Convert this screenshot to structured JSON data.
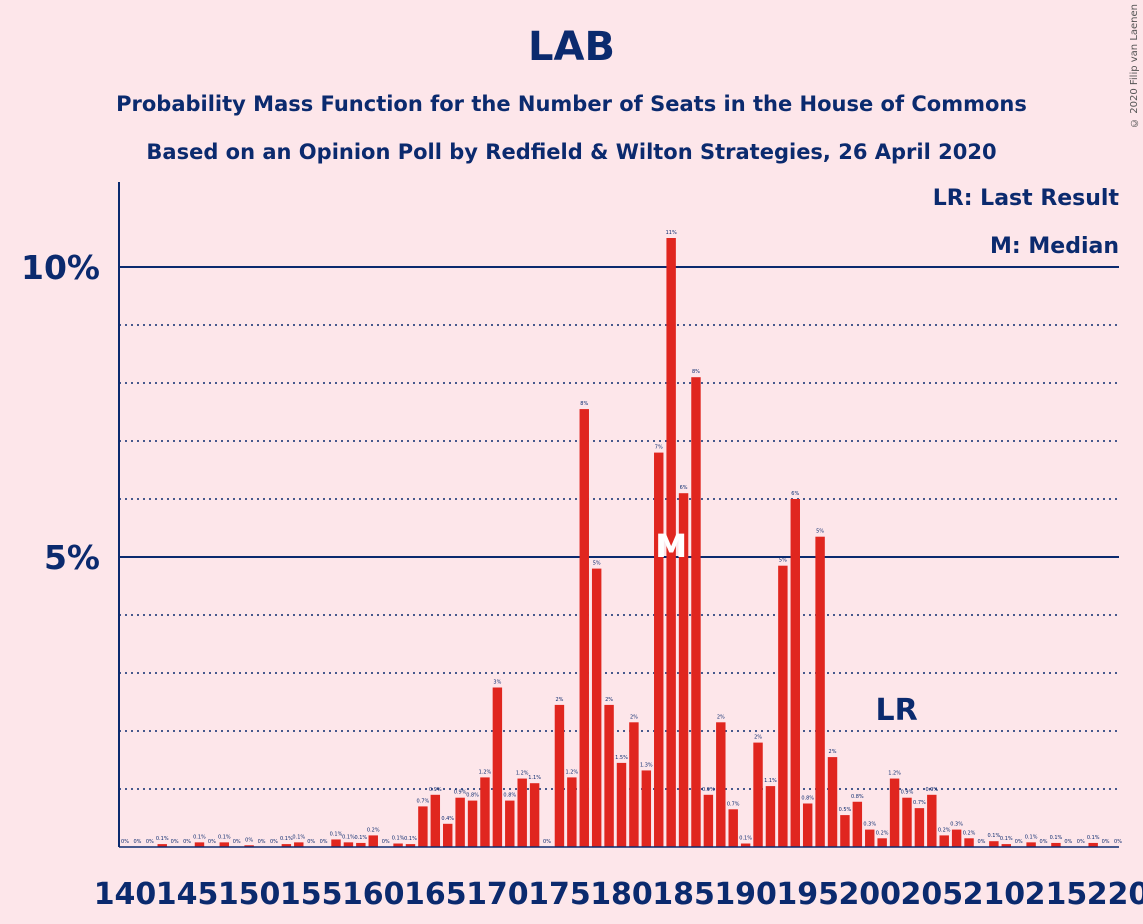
{
  "title": "LAB",
  "subtitle1": "Probability Mass Function for the Number of Seats in the House of Commons",
  "subtitle2": "Based on an Opinion Poll by Redfield & Wilton Strategies, 26 April 2020",
  "copyright": "© 2020 Filip van Laenen",
  "legend": {
    "last_result": "LR: Last Result",
    "median": "M: Median"
  },
  "colors": {
    "bar": "#e0261f",
    "axis": "#0b2a6e",
    "background": "#fde6ea"
  },
  "chart_data": {
    "type": "bar",
    "x": [
      140,
      141,
      142,
      143,
      144,
      145,
      146,
      147,
      148,
      149,
      150,
      151,
      152,
      153,
      154,
      155,
      156,
      157,
      158,
      159,
      160,
      161,
      162,
      163,
      164,
      165,
      166,
      167,
      168,
      169,
      170,
      171,
      172,
      173,
      174,
      175,
      176,
      177,
      178,
      179,
      180,
      181,
      182,
      183,
      184,
      185,
      186,
      187,
      188,
      189,
      190,
      191,
      192,
      193,
      194,
      195,
      196,
      197,
      198,
      199,
      200,
      201,
      202,
      203,
      204,
      205,
      206,
      207,
      208,
      209,
      210,
      211,
      212,
      213,
      214,
      215,
      216,
      217,
      218,
      219,
      220
    ],
    "values": [
      0,
      0,
      0,
      0.05,
      0,
      0,
      0.08,
      0,
      0.08,
      0,
      0.03,
      0,
      0,
      0.05,
      0.08,
      0,
      0,
      0.13,
      0.08,
      0.07,
      0.2,
      0,
      0.06,
      0.05,
      0.7,
      0.9,
      0.4,
      0.85,
      0.8,
      1.2,
      2.75,
      0.8,
      1.18,
      1.1,
      0,
      2.45,
      1.2,
      7.55,
      4.8,
      2.45,
      1.45,
      2.15,
      1.32,
      6.8,
      10.5,
      6.1,
      8.1,
      0.9,
      2.15,
      0.65,
      0.06,
      1.8,
      1.05,
      4.85,
      6.0,
      0.75,
      5.35,
      1.55,
      0.55,
      0.78,
      0.3,
      0.15,
      1.18,
      0.85,
      0.67,
      0.9,
      0.2,
      0.3,
      0.15,
      0,
      0.1,
      0.05,
      0,
      0.08,
      0,
      0.07,
      0,
      0,
      0.07,
      0,
      0
    ],
    "labels": [
      "0%",
      "0%",
      "0%",
      "0.1%",
      "0%",
      "0%",
      "0.1%",
      "0%",
      "0.1%",
      "0%",
      "0%",
      "0%",
      "0%",
      "0.1%",
      "0.1%",
      "0%",
      "0%",
      "0.1%",
      "0.1%",
      "0.1%",
      "0.2%",
      "0%",
      "0.1%",
      "0.1%",
      "0.7%",
      "0.9%",
      "0.4%",
      "0.9%",
      "0.8%",
      "1.2%",
      "3%",
      "0.8%",
      "1.2%",
      "1.1%",
      "0%",
      "2%",
      "1.2%",
      "8%",
      "5%",
      "2%",
      "1.5%",
      "2%",
      "1.3%",
      "7%",
      "11%",
      "6%",
      "8%",
      "0.9%",
      "2%",
      "0.7%",
      "0.1%",
      "2%",
      "1.1%",
      "5%",
      "6%",
      "0.8%",
      "5%",
      "2%",
      "0.5%",
      "0.8%",
      "0.3%",
      "0.2%",
      "1.2%",
      "0.9%",
      "0.7%",
      "0.9%",
      "0.2%",
      "0.3%",
      "0.2%",
      "0%",
      "0.1%",
      "0.1%",
      "0%",
      "0.1%",
      "0%",
      "0.1%",
      "0%",
      "0%",
      "0.1%",
      "0%",
      "0%"
    ],
    "x_tick_labels": [
      "140",
      "145",
      "150",
      "155",
      "160",
      "165",
      "170",
      "175",
      "180",
      "185",
      "190",
      "195",
      "200",
      "205",
      "210",
      "215",
      "220"
    ],
    "y_tick_labels": [
      "5%",
      "10%"
    ],
    "y_major_ticks": [
      5,
      10
    ],
    "y_minor_ticks": [
      1,
      2,
      3,
      4,
      6,
      7,
      8,
      9
    ],
    "ylim": [
      0,
      11.5
    ],
    "xlim": [
      140,
      220
    ],
    "median": 184,
    "median_label": "M",
    "last_result": 202,
    "last_result_label": "LR"
  }
}
